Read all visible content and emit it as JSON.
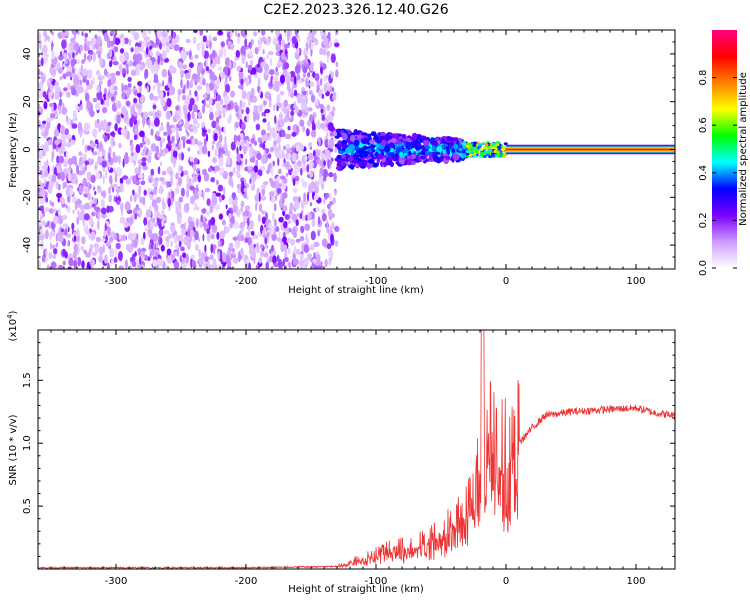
{
  "title": "C2E2.2023.326.12.40.G26",
  "chart_data": [
    {
      "type": "heatmap",
      "xlabel": "Height of straight line (km)",
      "ylabel": "Frequency (Hz)",
      "xlim": [
        -360,
        130
      ],
      "ylim": [
        -50,
        50
      ],
      "xticks": [
        -300,
        -200,
        -100,
        0,
        100
      ],
      "yticks": [
        -40,
        -20,
        0,
        20,
        40
      ],
      "colorbar": {
        "label": "Normalized spectral amplitude",
        "range": [
          0,
          1
        ],
        "ticks": [
          "0.0",
          "0.2",
          "0.4",
          "0.6",
          "0.8"
        ],
        "colors": [
          "#ffffff",
          "#cc99ff",
          "#7a00ff",
          "#0000ff",
          "#00ffff",
          "#00ff00",
          "#ffff00",
          "#ff8000",
          "#ff0000",
          "#ff0080"
        ]
      },
      "regions": [
        {
          "x": [
            -360,
            -130
          ],
          "freq": [
            -50,
            50
          ],
          "amplitude": [
            0.0,
            0.12
          ],
          "note_color": "#7a00ff"
        },
        {
          "x": [
            -130,
            -30
          ],
          "freq": [
            -8,
            8
          ],
          "amplitude": [
            0.15,
            0.35
          ]
        },
        {
          "x": [
            -30,
            0
          ],
          "freq": [
            -3,
            3
          ],
          "amplitude": [
            0.3,
            0.75
          ]
        },
        {
          "x": [
            0,
            130
          ],
          "freq": [
            -1,
            1
          ],
          "amplitude": [
            0.85,
            0.9
          ]
        }
      ]
    },
    {
      "type": "line",
      "xlabel": "Height of straight line (km)",
      "ylabel": "SNR (10 * v/v)",
      "y_multiplier": "(x10^4)",
      "xlim": [
        -360,
        130
      ],
      "ylim": [
        0,
        1.9
      ],
      "xticks": [
        -300,
        -200,
        -100,
        0,
        100
      ],
      "yticks": [
        "0.5",
        "1.0",
        "1.5"
      ],
      "series_color": "#ee3333",
      "x": [
        -360,
        -300,
        -200,
        -130,
        -120,
        -100,
        -90,
        -70,
        -50,
        -40,
        -30,
        -20,
        -15,
        -10,
        0,
        10,
        20,
        30,
        50,
        80,
        100,
        115,
        130
      ],
      "values": [
        0.01,
        0.01,
        0.01,
        0.02,
        0.05,
        0.12,
        0.15,
        0.18,
        0.26,
        0.35,
        0.5,
        0.8,
        1.05,
        0.95,
        0.9,
        1.0,
        1.12,
        1.22,
        1.25,
        1.27,
        1.28,
        1.24,
        1.22
      ]
    }
  ]
}
